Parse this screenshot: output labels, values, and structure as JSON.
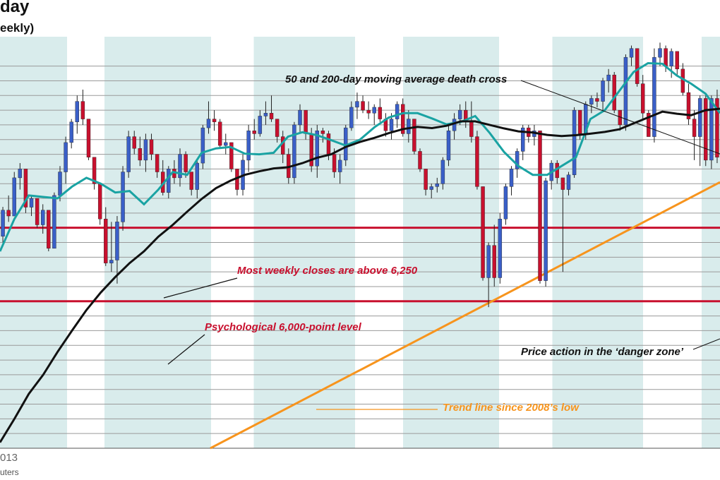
{
  "chart_data": {
    "type": "candlestick",
    "title": "day",
    "subtitle": "eekly)",
    "x_tick_label": "013",
    "source": "uters",
    "y_range": [
      5500,
      6900
    ],
    "gridline_step": 50,
    "grid": true,
    "period_band_count": 10,
    "colors": {
      "up": "#3a5fc8",
      "down": "#c8102e",
      "ma_short": "#1aa3a3",
      "ma_long": "#111111",
      "level_lines": "#c8102e",
      "trend": "#f7941d",
      "band": "#d9ecec"
    },
    "levels": [
      6250,
      6000
    ],
    "trend_line": {
      "start": [
        0,
        5400
      ],
      "end": [
        1,
        6405
      ]
    },
    "series": [
      {
        "name": "OHLC",
        "candles": [
          [
            6221,
            6321,
            6200,
            6310
          ],
          [
            6310,
            6360,
            6270,
            6290
          ],
          [
            6290,
            6440,
            6290,
            6420
          ],
          [
            6420,
            6470,
            6380,
            6450
          ],
          [
            6450,
            6450,
            6300,
            6320
          ],
          [
            6320,
            6360,
            6290,
            6350
          ],
          [
            6350,
            6350,
            6250,
            6260
          ],
          [
            6260,
            6330,
            6230,
            6310
          ],
          [
            6310,
            6310,
            6170,
            6180
          ],
          [
            6180,
            6370,
            6180,
            6360
          ],
          [
            6360,
            6460,
            6340,
            6440
          ],
          [
            6440,
            6560,
            6400,
            6540
          ],
          [
            6540,
            6620,
            6520,
            6610
          ],
          [
            6610,
            6700,
            6570,
            6680
          ],
          [
            6680,
            6720,
            6600,
            6620
          ],
          [
            6620,
            6620,
            6480,
            6490
          ],
          [
            6490,
            6490,
            6380,
            6400
          ],
          [
            6400,
            6400,
            6260,
            6280
          ],
          [
            6280,
            6320,
            6120,
            6130
          ],
          [
            6130,
            6270,
            6100,
            6140
          ],
          [
            6140,
            6290,
            6060,
            6270
          ],
          [
            6270,
            6460,
            6240,
            6440
          ],
          [
            6440,
            6580,
            6420,
            6560
          ],
          [
            6560,
            6580,
            6500,
            6520
          ],
          [
            6520,
            6560,
            6460,
            6480
          ],
          [
            6480,
            6570,
            6440,
            6550
          ],
          [
            6550,
            6570,
            6480,
            6500
          ],
          [
            6500,
            6500,
            6420,
            6440
          ],
          [
            6440,
            6480,
            6360,
            6370
          ],
          [
            6370,
            6460,
            6350,
            6450
          ],
          [
            6450,
            6480,
            6400,
            6420
          ],
          [
            6420,
            6520,
            6390,
            6500
          ],
          [
            6500,
            6510,
            6420,
            6440
          ],
          [
            6440,
            6440,
            6360,
            6380
          ],
          [
            6380,
            6480,
            6350,
            6470
          ],
          [
            6470,
            6600,
            6450,
            6590
          ],
          [
            6590,
            6680,
            6570,
            6620
          ],
          [
            6620,
            6650,
            6580,
            6610
          ],
          [
            6610,
            6620,
            6520,
            6530
          ],
          [
            6530,
            6570,
            6500,
            6540
          ],
          [
            6540,
            6540,
            6440,
            6450
          ],
          [
            6450,
            6450,
            6360,
            6380
          ],
          [
            6380,
            6500,
            6360,
            6480
          ],
          [
            6480,
            6600,
            6440,
            6580
          ],
          [
            6580,
            6620,
            6550,
            6570
          ],
          [
            6570,
            6650,
            6560,
            6630
          ],
          [
            6630,
            6680,
            6600,
            6640
          ],
          [
            6640,
            6700,
            6610,
            6620
          ],
          [
            6620,
            6620,
            6540,
            6560
          ],
          [
            6560,
            6580,
            6470,
            6500
          ],
          [
            6500,
            6520,
            6400,
            6420
          ],
          [
            6420,
            6610,
            6400,
            6600
          ],
          [
            6600,
            6670,
            6570,
            6650
          ],
          [
            6650,
            6650,
            6550,
            6570
          ],
          [
            6570,
            6590,
            6440,
            6460
          ],
          [
            6460,
            6600,
            6420,
            6580
          ],
          [
            6580,
            6590,
            6540,
            6570
          ],
          [
            6570,
            6580,
            6480,
            6500
          ],
          [
            6500,
            6520,
            6420,
            6440
          ],
          [
            6440,
            6500,
            6400,
            6480
          ],
          [
            6480,
            6600,
            6460,
            6590
          ],
          [
            6590,
            6680,
            6580,
            6660
          ],
          [
            6660,
            6710,
            6620,
            6680
          ],
          [
            6680,
            6700,
            6640,
            6650
          ],
          [
            6650,
            6680,
            6620,
            6640
          ],
          [
            6640,
            6670,
            6600,
            6660
          ],
          [
            6660,
            6690,
            6610,
            6620
          ],
          [
            6620,
            6640,
            6560,
            6580
          ],
          [
            6580,
            6640,
            6550,
            6620
          ],
          [
            6620,
            6680,
            6590,
            6670
          ],
          [
            6670,
            6690,
            6560,
            6570
          ],
          [
            6570,
            6650,
            6540,
            6620
          ],
          [
            6620,
            6620,
            6500,
            6510
          ],
          [
            6510,
            6520,
            6440,
            6450
          ],
          [
            6450,
            6450,
            6360,
            6380
          ],
          [
            6380,
            6400,
            6350,
            6390
          ],
          [
            6390,
            6420,
            6370,
            6400
          ],
          [
            6400,
            6490,
            6380,
            6480
          ],
          [
            6480,
            6600,
            6460,
            6580
          ],
          [
            6580,
            6640,
            6550,
            6620
          ],
          [
            6620,
            6670,
            6600,
            6650
          ],
          [
            6650,
            6680,
            6590,
            6610
          ],
          [
            6610,
            6680,
            6540,
            6560
          ],
          [
            6560,
            6580,
            6380,
            6390
          ],
          [
            6390,
            6390,
            6070,
            6080
          ],
          [
            6080,
            6200,
            5980,
            6190
          ],
          [
            6190,
            6260,
            6050,
            6080
          ],
          [
            6080,
            6300,
            6060,
            6280
          ],
          [
            6280,
            6400,
            6260,
            6390
          ],
          [
            6390,
            6460,
            6360,
            6450
          ],
          [
            6450,
            6520,
            6420,
            6510
          ],
          [
            6510,
            6600,
            6480,
            6590
          ],
          [
            6590,
            6600,
            6540,
            6560
          ],
          [
            6560,
            6600,
            6530,
            6580
          ],
          [
            6580,
            6580,
            6060,
            6070
          ],
          [
            6070,
            6420,
            6050,
            6410
          ],
          [
            6410,
            6480,
            6380,
            6470
          ],
          [
            6470,
            6480,
            6400,
            6420
          ],
          [
            6420,
            6420,
            6100,
            6380
          ],
          [
            6380,
            6440,
            6360,
            6430
          ],
          [
            6430,
            6660,
            6420,
            6650
          ],
          [
            6650,
            6650,
            6550,
            6570
          ],
          [
            6570,
            6680,
            6550,
            6670
          ],
          [
            6670,
            6700,
            6640,
            6690
          ],
          [
            6690,
            6710,
            6660,
            6680
          ],
          [
            6680,
            6760,
            6650,
            6750
          ],
          [
            6750,
            6790,
            6710,
            6770
          ],
          [
            6770,
            6780,
            6640,
            6650
          ],
          [
            6650,
            6650,
            6580,
            6600
          ],
          [
            6600,
            6840,
            6580,
            6830
          ],
          [
            6830,
            6870,
            6800,
            6860
          ],
          [
            6860,
            6860,
            6730,
            6740
          ],
          [
            6740,
            6770,
            6620,
            6640
          ],
          [
            6640,
            6650,
            6560,
            6560
          ],
          [
            6560,
            6860,
            6540,
            6830
          ],
          [
            6830,
            6880,
            6800,
            6860
          ],
          [
            6860,
            6870,
            6780,
            6800
          ],
          [
            6800,
            6860,
            6760,
            6850
          ],
          [
            6850,
            6850,
            6770,
            6790
          ],
          [
            6790,
            6810,
            6700,
            6710
          ],
          [
            6710,
            6740,
            6600,
            6620
          ],
          [
            6620,
            6650,
            6480,
            6560
          ],
          [
            6560,
            6700,
            6460,
            6690
          ],
          [
            6690,
            6700,
            6460,
            6480
          ],
          [
            6480,
            6700,
            6450,
            6690
          ],
          [
            6690,
            6720,
            6470,
            6490
          ]
        ]
      },
      {
        "name": "",
        "kind": "moving-average-short",
        "values": [
          [
            0,
            6170
          ],
          [
            0.02,
            6280
          ],
          [
            0.04,
            6360
          ],
          [
            0.06,
            6355
          ],
          [
            0.08,
            6350
          ],
          [
            0.1,
            6390
          ],
          [
            0.12,
            6420
          ],
          [
            0.14,
            6400
          ],
          [
            0.16,
            6370
          ],
          [
            0.18,
            6375
          ],
          [
            0.2,
            6330
          ],
          [
            0.22,
            6380
          ],
          [
            0.24,
            6440
          ],
          [
            0.26,
            6430
          ],
          [
            0.28,
            6505
          ],
          [
            0.3,
            6520
          ],
          [
            0.32,
            6525
          ],
          [
            0.34,
            6502
          ],
          [
            0.36,
            6500
          ],
          [
            0.38,
            6505
          ],
          [
            0.4,
            6560
          ],
          [
            0.42,
            6575
          ],
          [
            0.44,
            6565
          ],
          [
            0.46,
            6548
          ],
          [
            0.48,
            6530
          ],
          [
            0.5,
            6550
          ],
          [
            0.52,
            6592
          ],
          [
            0.54,
            6625
          ],
          [
            0.56,
            6640
          ],
          [
            0.58,
            6640
          ],
          [
            0.6,
            6622
          ],
          [
            0.62,
            6602
          ],
          [
            0.64,
            6610
          ],
          [
            0.66,
            6630
          ],
          [
            0.68,
            6573
          ],
          [
            0.7,
            6508
          ],
          [
            0.72,
            6460
          ],
          [
            0.74,
            6430
          ],
          [
            0.76,
            6430
          ],
          [
            0.78,
            6460
          ],
          [
            0.8,
            6490
          ],
          [
            0.82,
            6620
          ],
          [
            0.84,
            6650
          ],
          [
            0.86,
            6715
          ],
          [
            0.88,
            6780
          ],
          [
            0.9,
            6810
          ],
          [
            0.92,
            6808
          ],
          [
            0.94,
            6768
          ],
          [
            0.96,
            6740
          ],
          [
            0.98,
            6706
          ],
          [
            1.0,
            6640
          ]
        ]
      },
      {
        "name": "",
        "kind": "moving-average-long",
        "values": [
          [
            0,
            5520
          ],
          [
            0.02,
            5600
          ],
          [
            0.04,
            5685
          ],
          [
            0.06,
            5750
          ],
          [
            0.08,
            5828
          ],
          [
            0.1,
            5900
          ],
          [
            0.12,
            5970
          ],
          [
            0.14,
            6030
          ],
          [
            0.16,
            6082
          ],
          [
            0.18,
            6130
          ],
          [
            0.2,
            6170
          ],
          [
            0.22,
            6220
          ],
          [
            0.24,
            6260
          ],
          [
            0.26,
            6305
          ],
          [
            0.28,
            6348
          ],
          [
            0.3,
            6385
          ],
          [
            0.32,
            6410
          ],
          [
            0.34,
            6430
          ],
          [
            0.36,
            6442
          ],
          [
            0.38,
            6452
          ],
          [
            0.4,
            6456
          ],
          [
            0.42,
            6470
          ],
          [
            0.44,
            6488
          ],
          [
            0.46,
            6500
          ],
          [
            0.48,
            6525
          ],
          [
            0.5,
            6542
          ],
          [
            0.52,
            6556
          ],
          [
            0.54,
            6572
          ],
          [
            0.56,
            6586
          ],
          [
            0.58,
            6593
          ],
          [
            0.6,
            6589
          ],
          [
            0.62,
            6597
          ],
          [
            0.64,
            6612
          ],
          [
            0.66,
            6612
          ],
          [
            0.68,
            6600
          ],
          [
            0.7,
            6588
          ],
          [
            0.72,
            6578
          ],
          [
            0.74,
            6574
          ],
          [
            0.76,
            6566
          ],
          [
            0.78,
            6562
          ],
          [
            0.8,
            6565
          ],
          [
            0.82,
            6570
          ],
          [
            0.84,
            6576
          ],
          [
            0.86,
            6585
          ],
          [
            0.88,
            6605
          ],
          [
            0.9,
            6625
          ],
          [
            0.92,
            6645
          ],
          [
            0.94,
            6638
          ],
          [
            0.96,
            6633
          ],
          [
            0.98,
            6650
          ],
          [
            1.0,
            6655
          ]
        ]
      }
    ]
  },
  "annotations": {
    "death_cross": "50 and 200-day moving average death cross",
    "above_6250": "Most weekly closes are above 6,250",
    "level_6000": "Psychological 6,000-point level",
    "danger_zone": "Price action in the ‘danger zone’",
    "trend_line": "Trend line since 2008’s low"
  }
}
